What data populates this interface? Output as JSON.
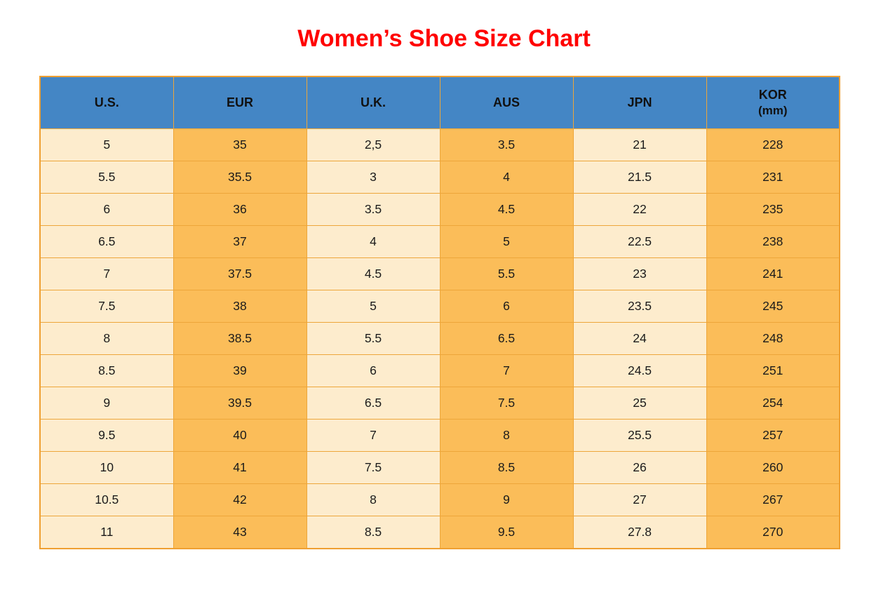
{
  "title": "Women’s Shoe Size Chart",
  "colors": {
    "title_red": "#ff0000",
    "header_blue": "#4486c5",
    "cell_light_cream": "#fdeccd",
    "cell_dark_orange": "#fbbd59",
    "grid_border_gold": "#eda63a",
    "text_black": "#1b1b1b"
  },
  "chart_data": {
    "type": "table",
    "title": "Women’s Shoe Size Chart",
    "columns": [
      {
        "label": "U.S.",
        "sublabel": ""
      },
      {
        "label": "EUR",
        "sublabel": ""
      },
      {
        "label": "U.K.",
        "sublabel": ""
      },
      {
        "label": "AUS",
        "sublabel": ""
      },
      {
        "label": "JPN",
        "sublabel": ""
      },
      {
        "label": "KOR",
        "sublabel": "(mm)"
      }
    ],
    "rows": [
      [
        "5",
        "35",
        "2,5",
        "3.5",
        "21",
        "228"
      ],
      [
        "5.5",
        "35.5",
        "3",
        "4",
        "21.5",
        "231"
      ],
      [
        "6",
        "36",
        "3.5",
        "4.5",
        "22",
        "235"
      ],
      [
        "6.5",
        "37",
        "4",
        "5",
        "22.5",
        "238"
      ],
      [
        "7",
        "37.5",
        "4.5",
        "5.5",
        "23",
        "241"
      ],
      [
        "7.5",
        "38",
        "5",
        "6",
        "23.5",
        "245"
      ],
      [
        "8",
        "38.5",
        "5.5",
        "6.5",
        "24",
        "248"
      ],
      [
        "8.5",
        "39",
        "6",
        "7",
        "24.5",
        "251"
      ],
      [
        "9",
        "39.5",
        "6.5",
        "7.5",
        "25",
        "254"
      ],
      [
        "9.5",
        "40",
        "7",
        "8",
        "25.5",
        "257"
      ],
      [
        "10",
        "41",
        "7.5",
        "8.5",
        "26",
        "260"
      ],
      [
        "10.5",
        "42",
        "8",
        "9",
        "27",
        "267"
      ],
      [
        "11",
        "43",
        "8.5",
        "9.5",
        "27.8",
        "270"
      ]
    ]
  }
}
